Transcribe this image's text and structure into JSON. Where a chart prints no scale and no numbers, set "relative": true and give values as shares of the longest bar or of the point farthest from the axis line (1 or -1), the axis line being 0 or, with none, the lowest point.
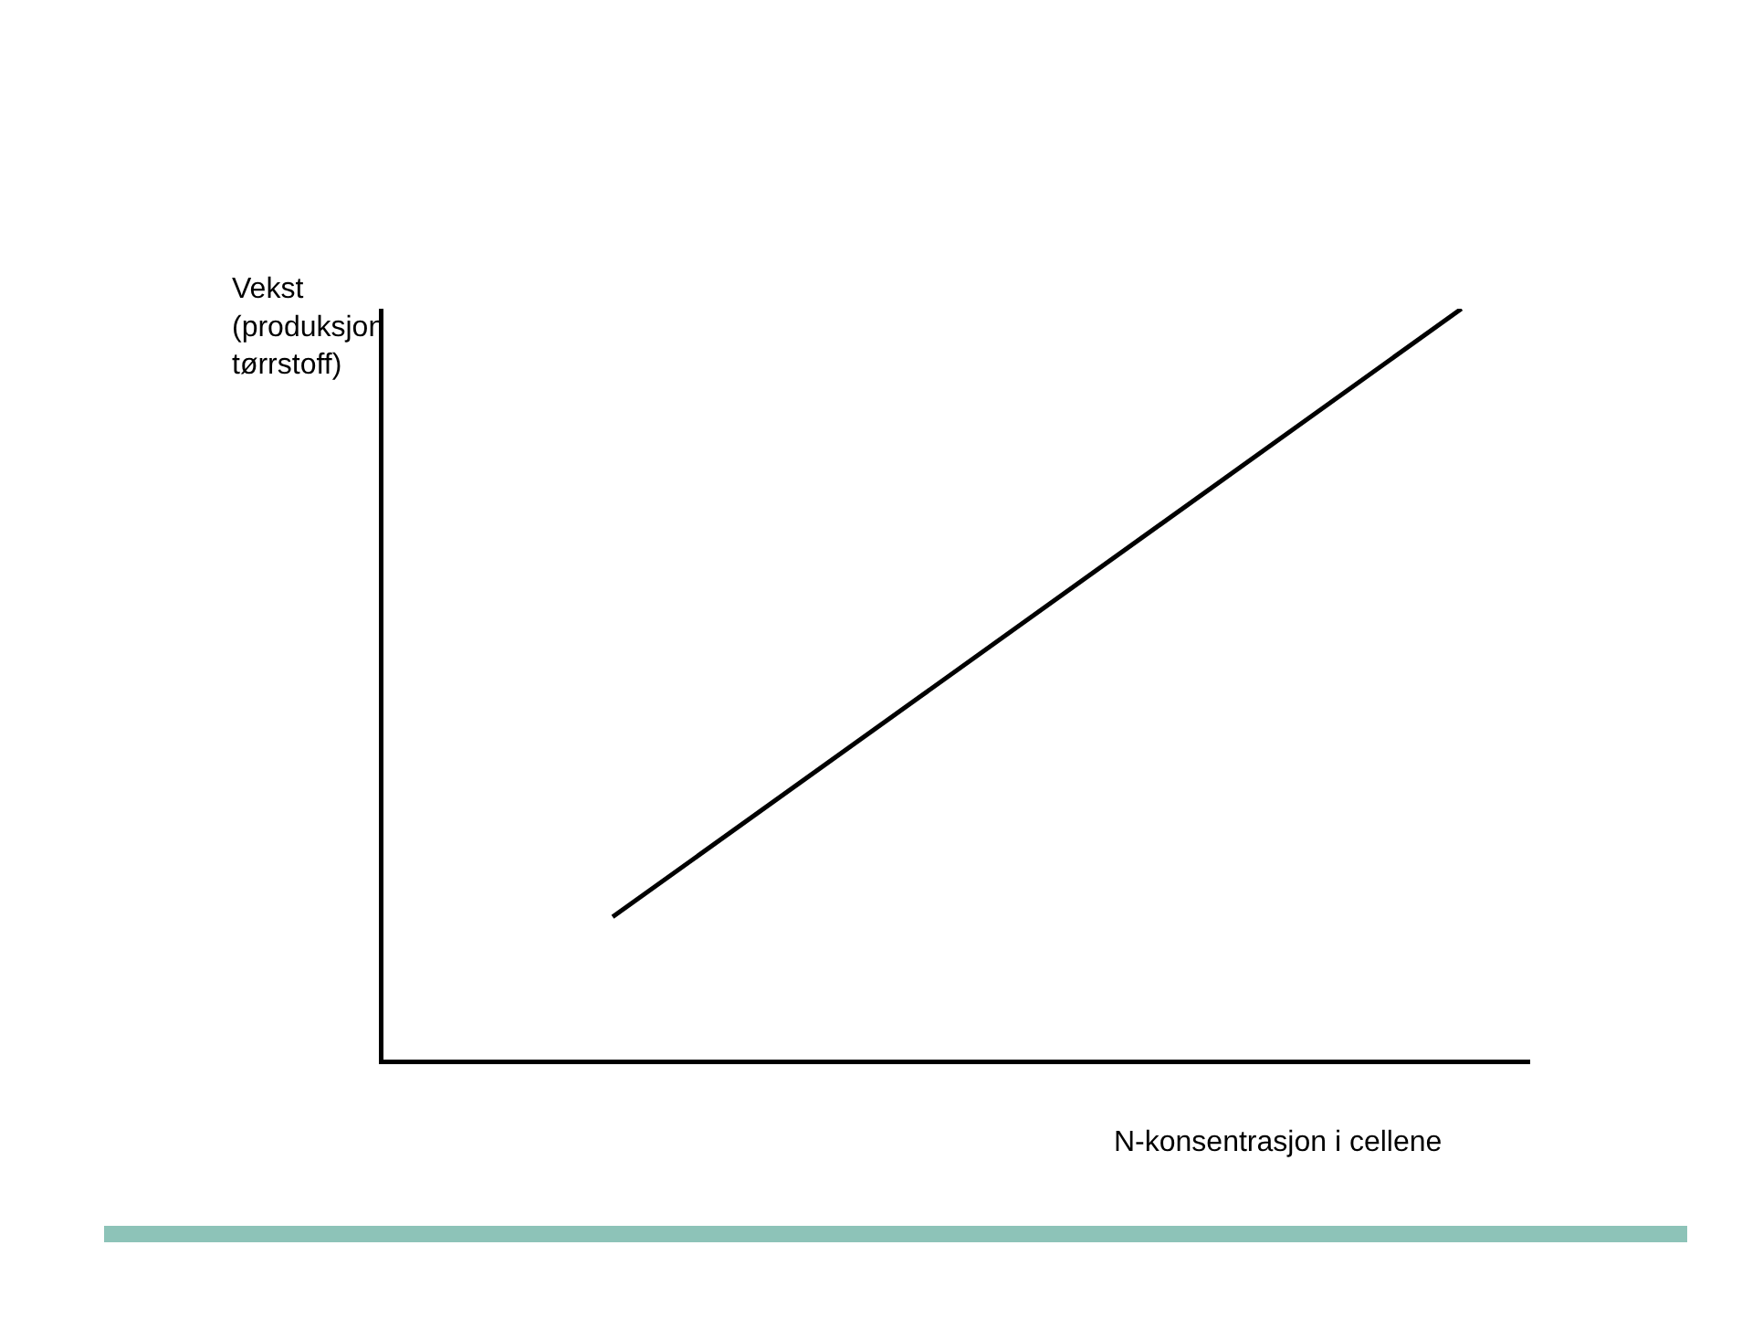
{
  "chart_data": {
    "type": "line",
    "relative": true,
    "xlabel": "N-konsentrasjon i cellene",
    "ylabel": "Vekst\n(produksjon\ntørrstoff)",
    "categories": [
      null,
      null
    ],
    "series": [
      {
        "color": "#000000",
        "values": [
          0.19,
          1
        ]
      }
    ],
    "marker": "none",
    "line_style": "solid",
    "grid": false
  }
}
